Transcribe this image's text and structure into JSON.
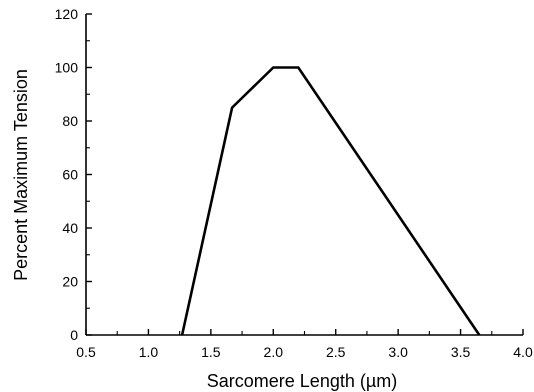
{
  "chart_data": {
    "type": "line",
    "title": "",
    "xlabel": "Sarcomere Length (µm)",
    "ylabel": "Percent Maximum Tension",
    "xlim": [
      0.5,
      4.0
    ],
    "ylim": [
      0,
      120
    ],
    "xticks": [
      "0.5",
      "1.0",
      "1.5",
      "2.0",
      "2.5",
      "3.0",
      "3.5",
      "4.0"
    ],
    "yticks": [
      "0",
      "20",
      "40",
      "60",
      "80",
      "100",
      "120"
    ],
    "grid": false,
    "series": [
      {
        "x": [
          1.27,
          1.67,
          2.0,
          2.2,
          3.65
        ],
        "y": [
          0,
          85,
          100,
          100,
          0
        ]
      }
    ]
  }
}
